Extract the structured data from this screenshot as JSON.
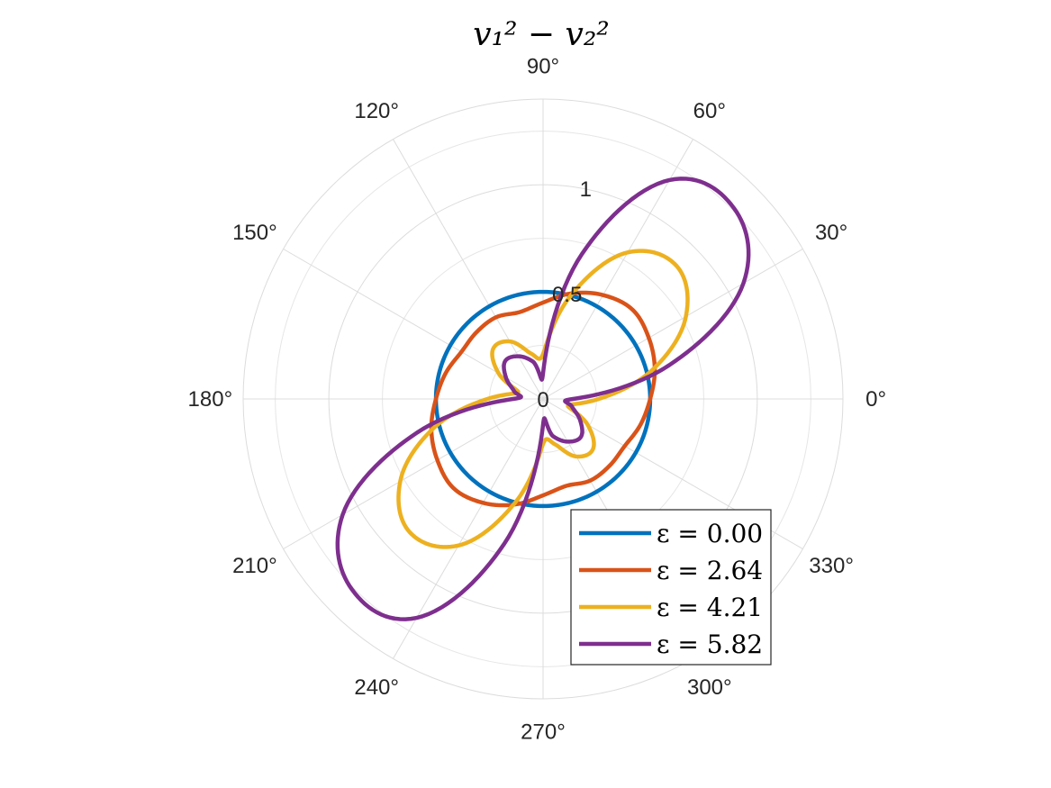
{
  "chart_data": {
    "type": "polar-line",
    "title": "v₁² − v₂²",
    "theta_ticks_deg": [
      0,
      30,
      60,
      90,
      120,
      150,
      180,
      210,
      240,
      270,
      300,
      330
    ],
    "theta_tick_labels": [
      "0°",
      "30°",
      "60°",
      "90°",
      "120°",
      "150°",
      "180°",
      "210°",
      "240°",
      "270°",
      "300°",
      "330°"
    ],
    "r_lim": [
      0,
      1.4
    ],
    "r_ticks": [
      0,
      0.5,
      1
    ],
    "r_tick_labels": [
      "0",
      "0.5",
      "1"
    ],
    "r_tick_angle_deg": 80,
    "grid": true,
    "legend_position": "bottom-right",
    "theta_deg": [
      0,
      15,
      30,
      45,
      60,
      75,
      90,
      105,
      120,
      135,
      150,
      165,
      180
    ],
    "series": [
      {
        "name": "ε = 0.00",
        "color": "#0072BD",
        "values": [
          0.5,
          0.5,
          0.5,
          0.5,
          0.5,
          0.5,
          0.5,
          0.5,
          0.5,
          0.5,
          0.5,
          0.5,
          0.5
        ]
      },
      {
        "name": "ε = 2.64",
        "color": "#D95319",
        "values": [
          0.5,
          0.54,
          0.57,
          0.59,
          0.56,
          0.51,
          0.45,
          0.42,
          0.44,
          0.44,
          0.44,
          0.47,
          0.5
        ]
      },
      {
        "name": "ε = 4.21",
        "color": "#EDB120",
        "values": [
          0.26,
          0.53,
          0.77,
          0.88,
          0.79,
          0.5,
          0.21,
          0.22,
          0.31,
          0.33,
          0.24,
          0.12,
          0.26
        ]
      },
      {
        "name": "ε = 5.82",
        "color": "#7E2F8E",
        "values": [
          0.14,
          0.61,
          1.08,
          1.26,
          1.18,
          0.7,
          0.12,
          0.18,
          0.23,
          0.25,
          0.2,
          0.14,
          0.14
        ]
      }
    ]
  }
}
